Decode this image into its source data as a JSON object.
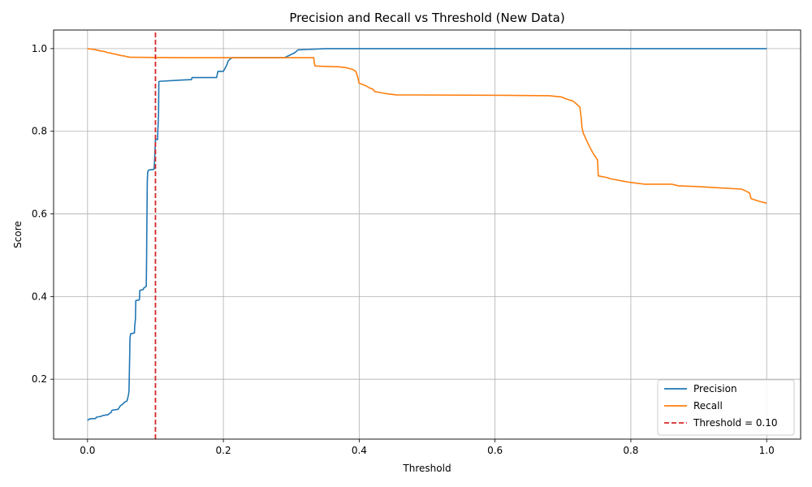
{
  "chart_data": {
    "type": "line",
    "title": "Precision and Recall vs Threshold (New Data)",
    "xlabel": "Threshold",
    "ylabel": "Score",
    "xlim": [
      -0.05,
      1.05
    ],
    "ylim": [
      0.055,
      1.045
    ],
    "xticks": [
      0.0,
      0.2,
      0.4,
      0.6,
      0.8,
      1.0
    ],
    "xtick_labels": [
      "0.0",
      "0.2",
      "0.4",
      "0.6",
      "0.8",
      "1.0"
    ],
    "yticks": [
      0.2,
      0.4,
      0.6,
      0.8,
      1.0
    ],
    "ytick_labels": [
      "0.2",
      "0.4",
      "0.6",
      "0.8",
      "1.0"
    ],
    "grid": true,
    "legend_position": "lower-right",
    "series": [
      {
        "name": "Precision",
        "color": "#1f77b4",
        "x": [
          0.0,
          0.003,
          0.012,
          0.013,
          0.02,
          0.022,
          0.03,
          0.033,
          0.035,
          0.036,
          0.045,
          0.048,
          0.052,
          0.055,
          0.058,
          0.06,
          0.061,
          0.0615,
          0.062,
          0.0625,
          0.0635,
          0.069,
          0.0695,
          0.0705,
          0.071,
          0.076,
          0.0765,
          0.077,
          0.082,
          0.0825,
          0.0865,
          0.087,
          0.0872,
          0.0875,
          0.0878,
          0.088,
          0.0885,
          0.089,
          0.0895,
          0.09,
          0.098,
          0.0985,
          0.1,
          0.103,
          0.1035,
          0.1045,
          0.105,
          0.107,
          0.14,
          0.153,
          0.154,
          0.19,
          0.192,
          0.2,
          0.205,
          0.207,
          0.21,
          0.213,
          0.29,
          0.305,
          0.31,
          0.35,
          1.0
        ],
        "y": [
          0.1,
          0.104,
          0.105,
          0.108,
          0.11,
          0.112,
          0.114,
          0.118,
          0.12,
          0.125,
          0.127,
          0.135,
          0.14,
          0.145,
          0.147,
          0.16,
          0.17,
          0.21,
          0.25,
          0.3,
          0.31,
          0.312,
          0.33,
          0.345,
          0.39,
          0.392,
          0.395,
          0.415,
          0.417,
          0.42,
          0.425,
          0.5,
          0.55,
          0.6,
          0.65,
          0.68,
          0.7,
          0.703,
          0.705,
          0.706,
          0.708,
          0.72,
          0.78,
          0.78,
          0.8,
          0.84,
          0.92,
          0.921,
          0.924,
          0.925,
          0.93,
          0.93,
          0.945,
          0.945,
          0.96,
          0.97,
          0.975,
          0.978,
          0.978,
          0.99,
          0.997,
          1.0,
          1.0
        ]
      },
      {
        "name": "Recall",
        "color": "#ff7f0e",
        "x": [
          0.0,
          0.01,
          0.015,
          0.02,
          0.025,
          0.03,
          0.033,
          0.036,
          0.04,
          0.045,
          0.05,
          0.055,
          0.058,
          0.06,
          0.063,
          0.065,
          0.14,
          0.3,
          0.333,
          0.334,
          0.335,
          0.35,
          0.37,
          0.38,
          0.39,
          0.395,
          0.398,
          0.4,
          0.402,
          0.41,
          0.413,
          0.415,
          0.42,
          0.422,
          0.423,
          0.43,
          0.44,
          0.455,
          0.62,
          0.68,
          0.697,
          0.698,
          0.705,
          0.707,
          0.715,
          0.72,
          0.725,
          0.726,
          0.727,
          0.728,
          0.73,
          0.74,
          0.745,
          0.75,
          0.751,
          0.752,
          0.765,
          0.77,
          0.8,
          0.82,
          0.86,
          0.87,
          0.9,
          0.963,
          0.97,
          0.975,
          0.977,
          0.99,
          1.0
        ],
        "y": [
          1.0,
          0.998,
          0.996,
          0.994,
          0.993,
          0.99,
          0.99,
          0.988,
          0.987,
          0.985,
          0.983,
          0.982,
          0.98,
          0.98,
          0.979,
          0.979,
          0.978,
          0.978,
          0.978,
          0.965,
          0.958,
          0.957,
          0.956,
          0.954,
          0.95,
          0.945,
          0.93,
          0.916,
          0.915,
          0.91,
          0.907,
          0.905,
          0.902,
          0.898,
          0.896,
          0.894,
          0.891,
          0.888,
          0.887,
          0.886,
          0.883,
          0.883,
          0.878,
          0.877,
          0.873,
          0.866,
          0.858,
          0.845,
          0.83,
          0.81,
          0.795,
          0.76,
          0.745,
          0.733,
          0.731,
          0.692,
          0.688,
          0.685,
          0.676,
          0.672,
          0.672,
          0.668,
          0.666,
          0.66,
          0.655,
          0.65,
          0.637,
          0.63,
          0.626
        ]
      },
      {
        "name": "Threshold = 0.10",
        "color": "#d62728",
        "dashed": true,
        "x": [
          0.1,
          0.1
        ],
        "y": [
          0.055,
          1.045
        ]
      }
    ]
  }
}
